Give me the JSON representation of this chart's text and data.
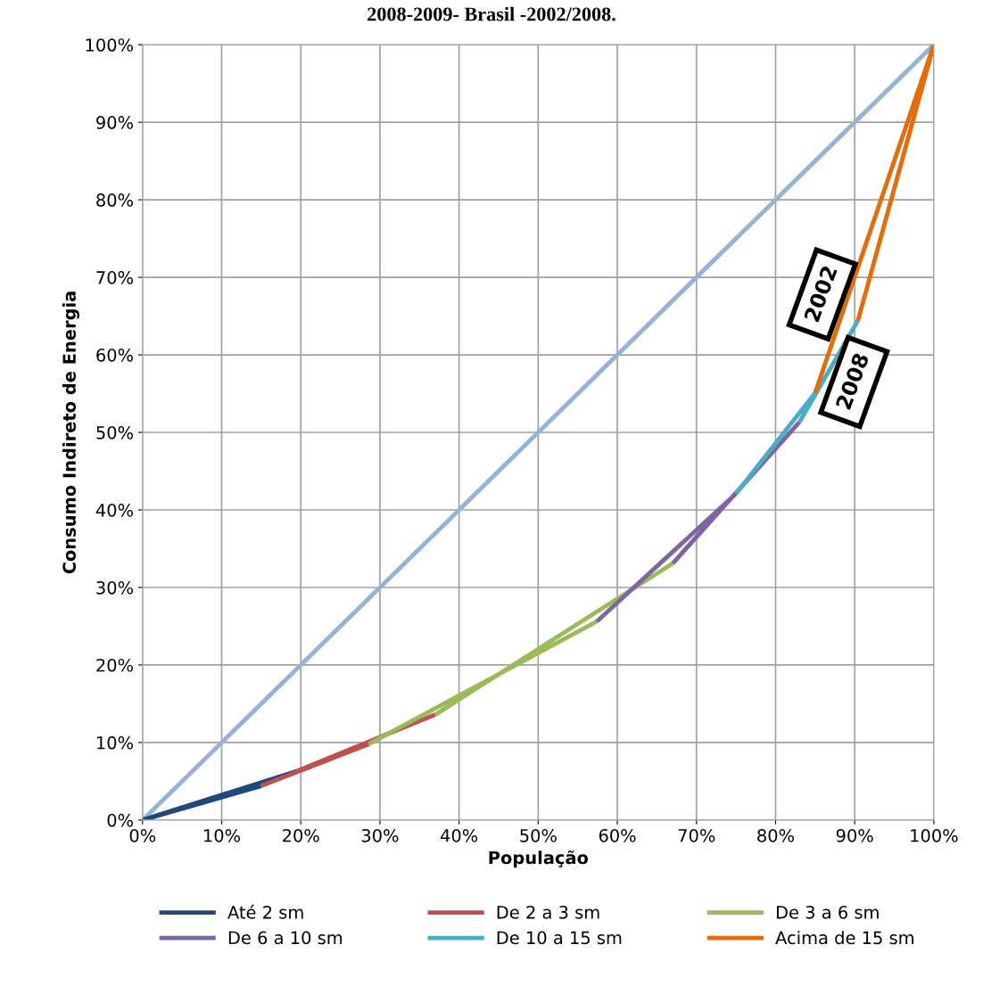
{
  "chart_data": {
    "type": "line",
    "title": "2008-2009- Brasil -2002/2008.",
    "xlabel": "População",
    "ylabel": "Consumo Indireto de Energia",
    "xlim": [
      0,
      100
    ],
    "ylim": [
      0,
      100
    ],
    "xticks": [
      {
        "value": 0,
        "label": "0%"
      },
      {
        "value": 10,
        "label": "10%"
      },
      {
        "value": 20,
        "label": "20%"
      },
      {
        "value": 30,
        "label": "30%"
      },
      {
        "value": 40,
        "label": "40%"
      },
      {
        "value": 50,
        "label": "50%"
      },
      {
        "value": 60,
        "label": "60%"
      },
      {
        "value": 70,
        "label": "70%"
      },
      {
        "value": 80,
        "label": "80%"
      },
      {
        "value": 90,
        "label": "90%"
      },
      {
        "value": 100,
        "label": "100%"
      }
    ],
    "yticks": [
      {
        "value": 0,
        "label": "0%"
      },
      {
        "value": 10,
        "label": "10%"
      },
      {
        "value": 20,
        "label": "20%"
      },
      {
        "value": 30,
        "label": "30%"
      },
      {
        "value": 40,
        "label": "40%"
      },
      {
        "value": 50,
        "label": "50%"
      },
      {
        "value": 60,
        "label": "60%"
      },
      {
        "value": 70,
        "label": "70%"
      },
      {
        "value": 80,
        "label": "80%"
      },
      {
        "value": 90,
        "label": "90%"
      },
      {
        "value": 100,
        "label": "100%"
      }
    ],
    "grid": true,
    "legend": "bottom",
    "marker": "none",
    "line_style": "solid",
    "series": [
      {
        "color": "#95b3d7",
        "x": [
          0,
          100
        ],
        "values": [
          0,
          100
        ]
      },
      {
        "name": "Até 2 sm",
        "color": "#1f497d",
        "x": [
          0,
          15,
          null,
          0,
          19.5
        ],
        "values": [
          0,
          4.4,
          null,
          0,
          6.3
        ]
      },
      {
        "name": "De 2 a 3 sm",
        "color": "#c0504d",
        "x": [
          15,
          28.6,
          null,
          19.5,
          37
        ],
        "values": [
          4.4,
          9.8,
          null,
          6.3,
          13.6
        ]
      },
      {
        "name": "De 3 a 6 sm",
        "color": "#9bbb59",
        "x": [
          28.6,
          57.4,
          null,
          37,
          67
        ],
        "values": [
          9.8,
          25.6,
          null,
          13.6,
          33.1
        ]
      },
      {
        "name": "De 6 a 10 sm",
        "color": "#8064a2",
        "x": [
          57.4,
          75,
          null,
          67,
          83
        ],
        "values": [
          25.6,
          42.1,
          null,
          33.1,
          51.3
        ]
      },
      {
        "name": "De 10 a 15 sm",
        "color": "#4bacc6",
        "x": [
          75,
          85,
          null,
          83,
          90.4
        ],
        "values": [
          42.1,
          55.1,
          null,
          51.3,
          64.4
        ]
      },
      {
        "name": "Acima de 15 sm",
        "color": "#e46c0a",
        "x": [
          85,
          100,
          null,
          90.4,
          100
        ],
        "values": [
          55.1,
          100,
          null,
          64.4,
          100
        ]
      }
    ],
    "annotations": [
      "2002",
      "2008"
    ]
  }
}
